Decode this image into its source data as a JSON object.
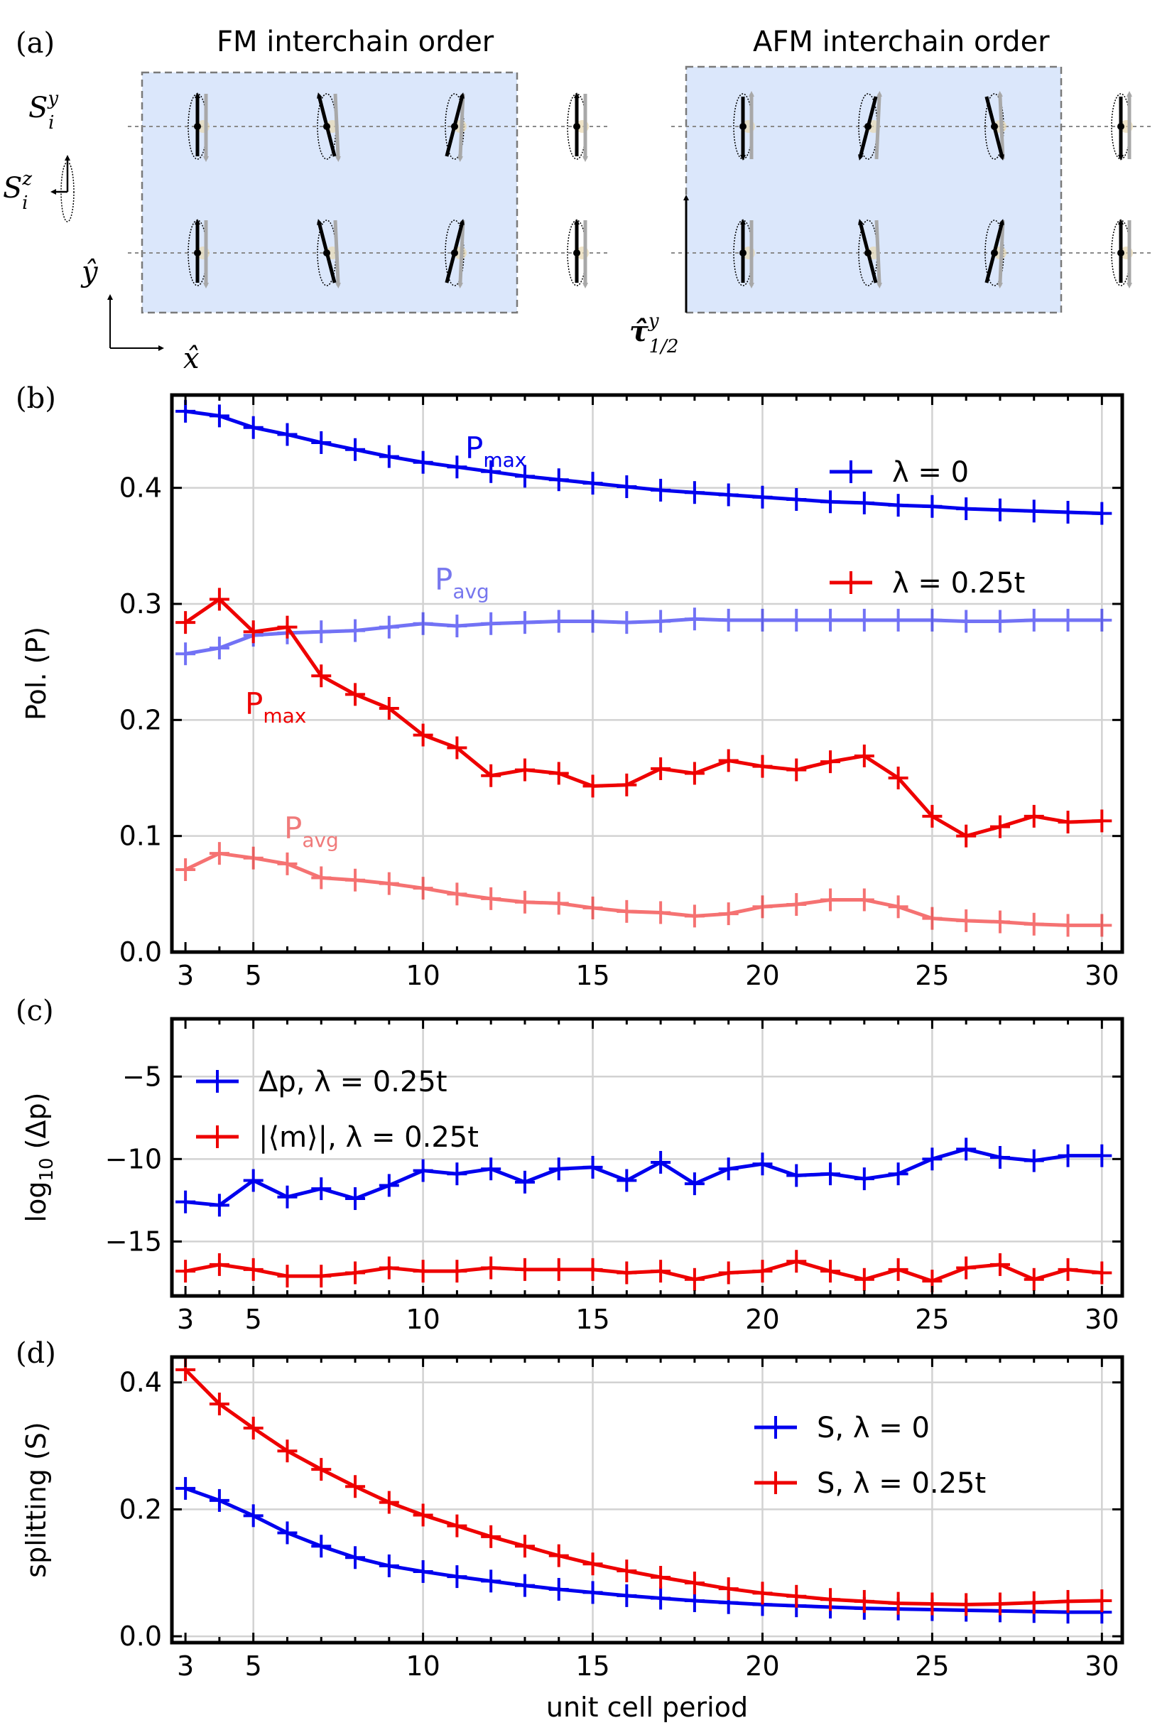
{
  "panel_a": {
    "label": "(a)",
    "titles": [
      "FM interchain order",
      "AFM interchain order"
    ],
    "spin_label_y": "S",
    "spin_label_y_sup": "y",
    "spin_label_y_sub": "i",
    "spin_label_z": "S",
    "spin_label_z_sup": "z",
    "spin_label_z_sub": "i",
    "axis_y": "ŷ",
    "axis_x": "x̂",
    "tau_label": "τ̂",
    "tau_sup": "y",
    "tau_sub": "1/2",
    "box_color": "#dbe7fb"
  },
  "chart_data": [
    {
      "type": "line",
      "panel": "(b)",
      "ylabel": "Pol. (P)",
      "xlabel": "",
      "xlim": [
        2.6,
        30.6
      ],
      "ylim": [
        0.0,
        0.48
      ],
      "xticks": [
        3,
        5,
        10,
        15,
        20,
        25,
        30
      ],
      "yticks": [
        0.0,
        0.1,
        0.2,
        0.3,
        0.4
      ],
      "ytick_labels": [
        "0.0",
        "0.1",
        "0.2",
        "0.3",
        "0.4"
      ],
      "grid": true,
      "legend": "right",
      "legend_entries": [
        {
          "text": "λ = 0",
          "color": "#0000ee"
        },
        {
          "text": "λ = 0.25t",
          "color": "#ee0000"
        }
      ],
      "annotations": [
        {
          "text": "P",
          "sub": "max",
          "color": "#0000ee"
        },
        {
          "text": "P",
          "sub": "avg",
          "color": "#7777ee"
        },
        {
          "text": "P",
          "sub": "max",
          "color": "#ee0000"
        },
        {
          "text": "P",
          "sub": "avg",
          "color": "#f07a7a"
        }
      ],
      "x": [
        3,
        4,
        5,
        6,
        7,
        8,
        9,
        10,
        11,
        12,
        13,
        14,
        15,
        16,
        17,
        18,
        19,
        20,
        21,
        22,
        23,
        24,
        25,
        26,
        27,
        28,
        29,
        30
      ],
      "series": [
        {
          "color": "#0000ee",
          "opacity": 1.0,
          "values": [
            0.466,
            0.462,
            0.452,
            0.446,
            0.439,
            0.433,
            0.427,
            0.422,
            0.418,
            0.414,
            0.41,
            0.407,
            0.404,
            0.401,
            0.398,
            0.396,
            0.394,
            0.392,
            0.39,
            0.388,
            0.387,
            0.385,
            0.384,
            0.382,
            0.381,
            0.38,
            0.379,
            0.378
          ]
        },
        {
          "color": "#0000ee",
          "opacity": 0.55,
          "values": [
            0.257,
            0.262,
            0.273,
            0.275,
            0.276,
            0.277,
            0.28,
            0.283,
            0.281,
            0.283,
            0.284,
            0.285,
            0.285,
            0.284,
            0.285,
            0.287,
            0.286,
            0.286,
            0.286,
            0.286,
            0.286,
            0.286,
            0.286,
            0.285,
            0.285,
            0.286,
            0.286,
            0.286
          ]
        },
        {
          "color": "#ee0000",
          "opacity": 1.0,
          "values": [
            0.284,
            0.304,
            0.276,
            0.28,
            0.238,
            0.222,
            0.21,
            0.187,
            0.176,
            0.152,
            0.157,
            0.154,
            0.143,
            0.144,
            0.158,
            0.154,
            0.165,
            0.16,
            0.157,
            0.164,
            0.169,
            0.15,
            0.117,
            0.1,
            0.108,
            0.117,
            0.112,
            0.113
          ]
        },
        {
          "color": "#ee0000",
          "opacity": 0.55,
          "values": [
            0.071,
            0.085,
            0.081,
            0.076,
            0.064,
            0.062,
            0.059,
            0.055,
            0.05,
            0.046,
            0.043,
            0.042,
            0.038,
            0.035,
            0.034,
            0.031,
            0.033,
            0.039,
            0.041,
            0.045,
            0.045,
            0.039,
            0.029,
            0.027,
            0.026,
            0.024,
            0.023,
            0.023
          ]
        }
      ]
    },
    {
      "type": "line",
      "panel": "(c)",
      "ylabel": "log10 (Δp)",
      "xlabel": "",
      "xlim": [
        2.6,
        30.6
      ],
      "ylim": [
        -18.3,
        -1.5
      ],
      "xticks": [
        3,
        5,
        10,
        15,
        20,
        25,
        30
      ],
      "yticks": [
        -15,
        -10,
        -5
      ],
      "ytick_labels": [
        "−15",
        "−10",
        "−5"
      ],
      "grid": true,
      "legend": "top-left",
      "legend_entries": [
        {
          "text": "Δp, λ = 0.25t",
          "color": "#0000ee"
        },
        {
          "text": "|⟨m⟩|, λ = 0.25t",
          "color": "#ee0000"
        }
      ],
      "x": [
        3,
        4,
        5,
        6,
        7,
        8,
        9,
        10,
        11,
        12,
        13,
        14,
        15,
        16,
        17,
        18,
        19,
        20,
        21,
        22,
        23,
        24,
        25,
        26,
        27,
        28,
        29,
        30
      ],
      "series": [
        {
          "color": "#0000ee",
          "opacity": 1.0,
          "values": [
            -12.6,
            -12.8,
            -11.3,
            -12.3,
            -11.8,
            -12.4,
            -11.6,
            -10.7,
            -10.9,
            -10.6,
            -11.4,
            -10.6,
            -10.5,
            -11.3,
            -10.2,
            -11.5,
            -10.6,
            -10.3,
            -11.0,
            -10.9,
            -11.2,
            -10.9,
            -10.0,
            -9.4,
            -9.9,
            -10.1,
            -9.8,
            -9.8
          ]
        },
        {
          "color": "#ee0000",
          "opacity": 1.0,
          "values": [
            -16.8,
            -16.4,
            -16.7,
            -17.1,
            -17.1,
            -16.9,
            -16.6,
            -16.8,
            -16.8,
            -16.6,
            -16.7,
            -16.7,
            -16.7,
            -16.9,
            -16.8,
            -17.3,
            -16.9,
            -16.8,
            -16.2,
            -16.8,
            -17.3,
            -16.7,
            -17.4,
            -16.6,
            -16.4,
            -17.3,
            -16.7,
            -16.9
          ]
        }
      ]
    },
    {
      "type": "line",
      "panel": "(d)",
      "ylabel": "splitting (S)",
      "xlabel": "unit cell period",
      "xlim": [
        2.6,
        30.6
      ],
      "ylim": [
        -0.01,
        0.44
      ],
      "xticks": [
        3,
        5,
        10,
        15,
        20,
        25,
        30
      ],
      "yticks": [
        0.0,
        0.2,
        0.4
      ],
      "ytick_labels": [
        "0.0",
        "0.2",
        "0.4"
      ],
      "grid": true,
      "legend": "right",
      "legend_entries": [
        {
          "text": "S, λ = 0",
          "color": "#0000ee"
        },
        {
          "text": "S, λ = 0.25t",
          "color": "#ee0000"
        }
      ],
      "x": [
        3,
        4,
        5,
        6,
        7,
        8,
        9,
        10,
        11,
        12,
        13,
        14,
        15,
        16,
        17,
        18,
        19,
        20,
        21,
        22,
        23,
        24,
        25,
        26,
        27,
        28,
        29,
        30
      ],
      "series": [
        {
          "color": "#0000ee",
          "opacity": 1.0,
          "values": [
            0.233,
            0.214,
            0.19,
            0.163,
            0.142,
            0.124,
            0.111,
            0.102,
            0.094,
            0.087,
            0.08,
            0.074,
            0.069,
            0.064,
            0.06,
            0.056,
            0.053,
            0.05,
            0.048,
            0.046,
            0.044,
            0.043,
            0.042,
            0.041,
            0.04,
            0.039,
            0.038,
            0.038
          ]
        },
        {
          "color": "#ee0000",
          "opacity": 1.0,
          "values": [
            0.42,
            0.366,
            0.328,
            0.292,
            0.263,
            0.236,
            0.211,
            0.191,
            0.174,
            0.157,
            0.142,
            0.127,
            0.114,
            0.103,
            0.093,
            0.084,
            0.075,
            0.068,
            0.063,
            0.058,
            0.055,
            0.052,
            0.051,
            0.05,
            0.051,
            0.053,
            0.055,
            0.056
          ]
        }
      ]
    }
  ]
}
